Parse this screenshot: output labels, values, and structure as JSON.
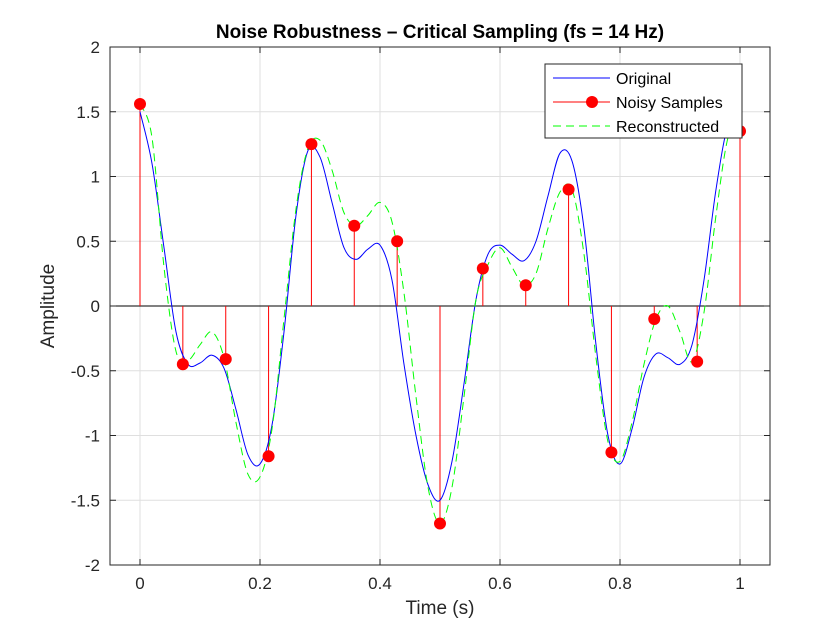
{
  "chart_data": {
    "type": "line",
    "title": "Noise Robustness – Critical Sampling (fs = 14 Hz)",
    "xlabel": "Time (s)",
    "ylabel": "Amplitude",
    "xlim": [
      -0.05,
      1.05
    ],
    "ylim": [
      -2,
      2
    ],
    "xticks": [
      0,
      0.2,
      0.4,
      0.6,
      0.8,
      1
    ],
    "xtick_labels": [
      "0",
      "0.2",
      "0.4",
      "0.6",
      "0.8",
      "1"
    ],
    "yticks": [
      -2,
      -1.5,
      -1,
      -0.5,
      0,
      0.5,
      1,
      1.5,
      2
    ],
    "ytick_labels": [
      "-2",
      "-1.5",
      "-1",
      "-0.5",
      "0",
      "0.5",
      "1",
      "1.5",
      "2"
    ],
    "grid": true,
    "legend_position": "top-right",
    "series": [
      {
        "name": "Original",
        "style": "solid line",
        "color": "#0000ff",
        "x": [
          0,
          0.02,
          0.04,
          0.06,
          0.08,
          0.1,
          0.12,
          0.14,
          0.16,
          0.18,
          0.2,
          0.22,
          0.24,
          0.26,
          0.28,
          0.3,
          0.32,
          0.34,
          0.36,
          0.38,
          0.4,
          0.42,
          0.44,
          0.46,
          0.48,
          0.5,
          0.52,
          0.54,
          0.56,
          0.58,
          0.6,
          0.62,
          0.64,
          0.66,
          0.68,
          0.7,
          0.72,
          0.74,
          0.76,
          0.78,
          0.8,
          0.82,
          0.84,
          0.86,
          0.88,
          0.9,
          0.92,
          0.94,
          0.96,
          0.98,
          1.0
        ],
        "y": [
          1.5,
          1.1,
          0.45,
          -0.2,
          -0.45,
          -0.44,
          -0.38,
          -0.48,
          -0.8,
          -1.15,
          -1.22,
          -0.92,
          -0.2,
          0.7,
          1.2,
          1.15,
          0.8,
          0.45,
          0.36,
          0.44,
          0.47,
          0.2,
          -0.45,
          -1.0,
          -1.38,
          -1.5,
          -1.2,
          -0.6,
          0.05,
          0.4,
          0.47,
          0.4,
          0.35,
          0.5,
          0.85,
          1.18,
          1.12,
          0.6,
          -0.3,
          -1.0,
          -1.22,
          -0.95,
          -0.55,
          -0.37,
          -0.4,
          -0.45,
          -0.3,
          0.2,
          0.9,
          1.4,
          1.5
        ]
      },
      {
        "name": "Noisy Samples",
        "style": "stem with filled circle markers",
        "color": "#ff0000",
        "x": [
          0,
          0.0714,
          0.1429,
          0.2143,
          0.2857,
          0.3571,
          0.4286,
          0.5,
          0.5714,
          0.6429,
          0.7143,
          0.7857,
          0.8571,
          0.9286,
          1.0
        ],
        "y": [
          1.56,
          -0.45,
          -0.41,
          -1.16,
          1.25,
          0.62,
          0.5,
          -1.68,
          0.29,
          0.16,
          0.9,
          -1.13,
          -0.1,
          -0.43,
          1.35
        ]
      },
      {
        "name": "Reconstructed",
        "style": "dashed line",
        "color": "#00ff00",
        "x": [
          0,
          0.02,
          0.04,
          0.06,
          0.08,
          0.1,
          0.12,
          0.14,
          0.16,
          0.18,
          0.2,
          0.22,
          0.24,
          0.26,
          0.28,
          0.3,
          0.32,
          0.34,
          0.36,
          0.38,
          0.4,
          0.42,
          0.44,
          0.46,
          0.48,
          0.5,
          0.52,
          0.54,
          0.56,
          0.58,
          0.6,
          0.62,
          0.64,
          0.66,
          0.68,
          0.7,
          0.72,
          0.74,
          0.76,
          0.78,
          0.8,
          0.82,
          0.84,
          0.86,
          0.88,
          0.9,
          0.92,
          0.94,
          0.96,
          0.98,
          1.0
        ],
        "y": [
          1.56,
          1.3,
          0.3,
          -0.35,
          -0.42,
          -0.3,
          -0.2,
          -0.4,
          -0.9,
          -1.3,
          -1.32,
          -0.95,
          -0.1,
          0.75,
          1.22,
          1.28,
          1.05,
          0.72,
          0.62,
          0.7,
          0.8,
          0.65,
          0.1,
          -0.7,
          -1.4,
          -1.68,
          -1.4,
          -0.7,
          0.05,
          0.32,
          0.45,
          0.3,
          0.16,
          0.25,
          0.6,
          0.88,
          0.9,
          0.4,
          -0.4,
          -1.05,
          -1.2,
          -0.9,
          -0.45,
          -0.1,
          0.0,
          -0.2,
          -0.43,
          -0.05,
          0.7,
          1.3,
          1.4
        ]
      }
    ]
  }
}
